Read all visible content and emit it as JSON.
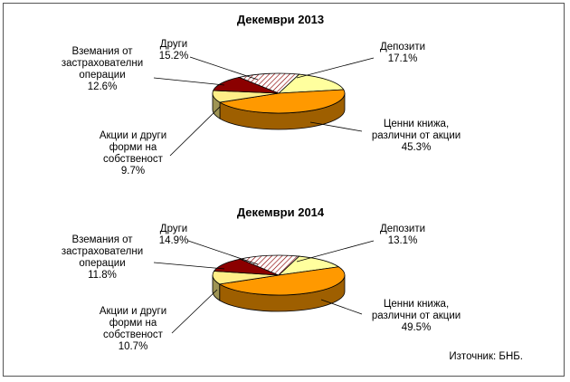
{
  "colors": {
    "depositi": "#ffff9e",
    "cenni_knija": "#ff9900",
    "akcii": "#ffee88",
    "vzemania": "#8b0000",
    "drugi": "#ffffff",
    "drugi_hatch": "#8b0000",
    "border": "#555555"
  },
  "source": "Източник: БНБ.",
  "chart_data": [
    {
      "type": "pie",
      "title": "Декември 2013",
      "slices": [
        {
          "key": "depositi",
          "label_lines": [
            "Депозити",
            "17.1%"
          ],
          "value": 17.1
        },
        {
          "key": "cenni_knija",
          "label_lines": [
            "Ценни книжа,",
            "различни от акции",
            "45.3%"
          ],
          "value": 45.3
        },
        {
          "key": "akcii",
          "label_lines": [
            "Акции и други",
            "форми на",
            "собственост",
            "9.7%"
          ],
          "value": 9.7
        },
        {
          "key": "vzemania",
          "label_lines": [
            "Вземания от",
            "застрахователни",
            "операции",
            "12.6%"
          ],
          "value": 12.6
        },
        {
          "key": "drugi",
          "label_lines": [
            "Други",
            "15.2%"
          ],
          "value": 15.2
        }
      ]
    },
    {
      "type": "pie",
      "title": "Декември 2014",
      "slices": [
        {
          "key": "depositi",
          "label_lines": [
            "Депозити",
            "13.1%"
          ],
          "value": 13.1
        },
        {
          "key": "cenni_knija",
          "label_lines": [
            "Ценни книжа,",
            "различни от акции",
            "49.5%"
          ],
          "value": 49.5
        },
        {
          "key": "akcii",
          "label_lines": [
            "Акции и други",
            "форми на",
            "собственост",
            "10.7%"
          ],
          "value": 10.7
        },
        {
          "key": "vzemania",
          "label_lines": [
            "Вземания от",
            "застрахователни",
            "операции",
            "11.8%"
          ],
          "value": 11.8
        },
        {
          "key": "drugi",
          "label_lines": [
            "Други",
            "14.9%"
          ],
          "value": 14.9
        }
      ]
    }
  ]
}
